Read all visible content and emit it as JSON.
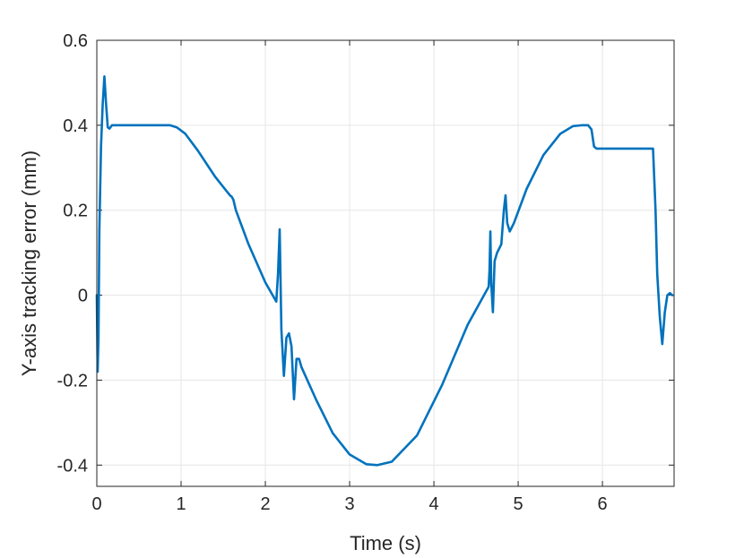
{
  "chart_data": {
    "type": "line",
    "title": "",
    "xlabel": "Time (s)",
    "ylabel": "Y-axis tracking error (mm)",
    "xlim": [
      0,
      6.85
    ],
    "ylim": [
      -0.45,
      0.6
    ],
    "xticks": [
      0,
      1,
      2,
      3,
      4,
      5,
      6
    ],
    "xtick_labels": [
      "0",
      "1",
      "2",
      "3",
      "4",
      "5",
      "6"
    ],
    "yticks": [
      -0.4,
      -0.2,
      0,
      0.2,
      0.4,
      0.6
    ],
    "ytick_labels": [
      "-0.4",
      "-0.2",
      "0",
      "0.2",
      "0.4",
      "0.6"
    ],
    "grid": true,
    "line_color": "#0072BD",
    "series": [
      {
        "x": [
          0,
          0.01,
          0.02,
          0.03,
          0.05,
          0.07,
          0.09,
          0.11,
          0.13,
          0.15,
          0.18,
          0.25,
          0.5,
          0.87,
          0.95,
          1.05,
          1.2,
          1.4,
          1.58,
          1.6,
          1.62,
          1.65,
          1.8,
          2.0,
          2.13,
          2.15,
          2.17,
          2.19,
          2.22,
          2.25,
          2.28,
          2.31,
          2.34,
          2.37,
          2.4,
          2.43,
          2.6,
          2.8,
          3.0,
          3.2,
          3.33,
          3.5,
          3.8,
          4.1,
          4.4,
          4.65,
          4.66,
          4.67,
          4.68,
          4.7,
          4.72,
          4.75,
          4.8,
          4.83,
          4.85,
          4.87,
          4.9,
          4.95,
          5.1,
          5.3,
          5.5,
          5.65,
          5.75,
          5.83,
          5.87,
          5.9,
          5.93,
          6.0,
          6.2,
          6.4,
          6.6,
          6.63,
          6.65,
          6.68,
          6.71,
          6.74,
          6.77,
          6.8,
          6.83
        ],
        "y": [
          0,
          -0.18,
          -0.1,
          0.15,
          0.35,
          0.45,
          0.515,
          0.45,
          0.395,
          0.392,
          0.4,
          0.4,
          0.4,
          0.4,
          0.395,
          0.38,
          0.34,
          0.28,
          0.235,
          0.232,
          0.225,
          0.2,
          0.12,
          0.03,
          -0.015,
          0.05,
          0.155,
          -0.08,
          -0.19,
          -0.1,
          -0.09,
          -0.12,
          -0.245,
          -0.15,
          -0.15,
          -0.17,
          -0.245,
          -0.325,
          -0.375,
          -0.398,
          -0.4,
          -0.392,
          -0.33,
          -0.21,
          -0.07,
          0.02,
          0.06,
          0.15,
          0.03,
          -0.04,
          0.08,
          0.1,
          0.12,
          0.2,
          0.235,
          0.17,
          0.15,
          0.17,
          0.25,
          0.33,
          0.38,
          0.398,
          0.4,
          0.4,
          0.39,
          0.35,
          0.345,
          0.345,
          0.345,
          0.345,
          0.345,
          0.2,
          0.05,
          -0.05,
          -0.115,
          -0.04,
          0.0,
          0.005,
          0.0
        ]
      }
    ]
  }
}
